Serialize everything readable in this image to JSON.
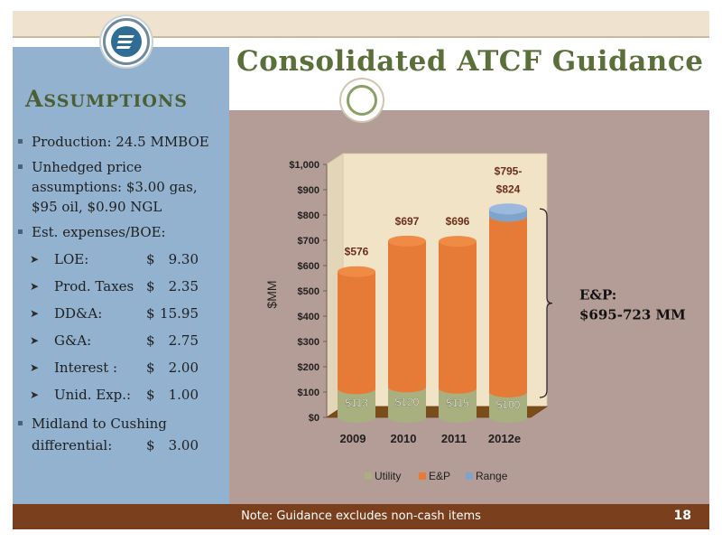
{
  "slide": {
    "title": "Consolidated ATCF Guidance",
    "assumptions_title_first": "A",
    "assumptions_title_rest": "SSUMPTIONS",
    "bullets": {
      "production": "Production: 24.5 MMBOE",
      "price_line1": "Unhedged price",
      "price_line2": "assumptions: $3.00 gas,",
      "price_line3": "$95 oil, $0.90 NGL",
      "expenses": "Est. expenses/BOE:",
      "differential_line1": "Midland to Cushing",
      "differential_label": "differential:",
      "differential_dollar": "$",
      "differential_value": "3.00"
    },
    "expenses": [
      {
        "label": "LOE:",
        "dollar": "$",
        "value": "9.30"
      },
      {
        "label": "Prod. Taxes",
        "dollar": "$",
        "value": "2.35"
      },
      {
        "label": "DD&A:",
        "dollar": "$",
        "value": "15.95"
      },
      {
        "label": "G&A:",
        "dollar": "$",
        "value": "2.75"
      },
      {
        "label": "Interest :",
        "dollar": "$",
        "value": "2.00"
      },
      {
        "label": "Unid. Exp.:",
        "dollar": "$",
        "value": "1.00"
      }
    ],
    "footer_note": "Note: Guidance excludes non-cash items",
    "page_number": "18",
    "bracket_annotation_line1": "E&P:",
    "bracket_annotation_line2": "$695-723 MM",
    "colors": {
      "utility": "#a7b07e",
      "ep": "#e67a37",
      "range": "#7fa4cc",
      "title_green": "#5a6f39",
      "footer_brown": "#7a3f1c"
    },
    "icons": [
      "company-logo-icon",
      "circle-ornament-icon",
      "square-bullet-icon",
      "arrow-bullet-icon"
    ]
  },
  "chart_data": {
    "type": "bar",
    "stacked": true,
    "categories": [
      "2009",
      "2010",
      "2011",
      "2012e"
    ],
    "series": [
      {
        "name": "Utility",
        "values": [
          113,
          120,
          115,
          100
        ]
      },
      {
        "name": "E&P",
        "values": [
          463,
          577,
          581,
          695
        ]
      },
      {
        "name": "Range",
        "values": [
          0,
          0,
          0,
          29
        ]
      }
    ],
    "total_labels": [
      "$576",
      "$697",
      "$696",
      "$795-\n$824"
    ],
    "utility_labels": [
      "$113",
      "$120",
      "$115",
      "$100"
    ],
    "ylabel": "$MM",
    "ylim": [
      0,
      1000
    ],
    "yticks": [
      0,
      100,
      200,
      300,
      400,
      500,
      600,
      700,
      800,
      900,
      1000
    ],
    "ytick_labels": [
      "$0",
      "$100",
      "$200",
      "$300",
      "$400",
      "$500",
      "$600",
      "$700",
      "$800",
      "$900",
      "$1,000"
    ],
    "legend": {
      "placement": "bottom",
      "entries": [
        "Utility",
        "E&P",
        "Range"
      ]
    }
  }
}
